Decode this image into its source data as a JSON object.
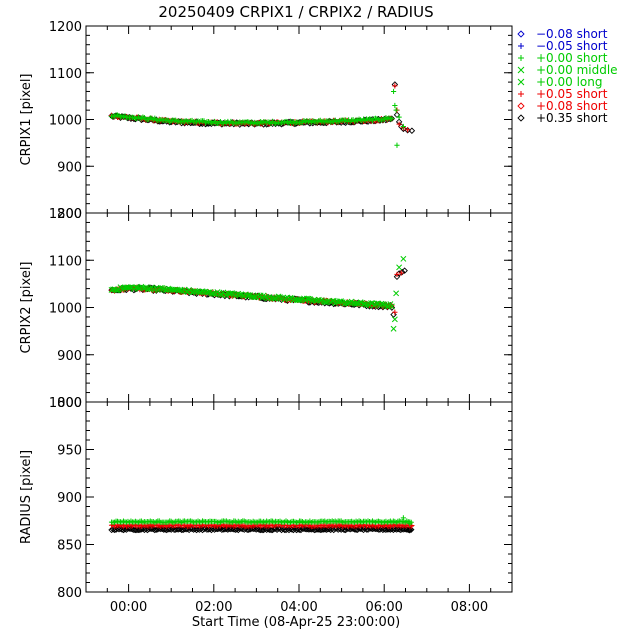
{
  "chart_data": {
    "type": "scatter",
    "title": "20250409  CRPIX1  /  CRPIX2  /  RADIUS",
    "xlabel": "Start Time (08-Apr-25 23:00:00)",
    "x_unit": "hours after 08-Apr-25 23:00:00",
    "xlim": [
      0,
      10
    ],
    "x_ticks": [
      {
        "value": 1,
        "label": "00:00"
      },
      {
        "value": 3,
        "label": "02:00"
      },
      {
        "value": 5,
        "label": "04:00"
      },
      {
        "value": 7,
        "label": "06:00"
      },
      {
        "value": 9,
        "label": "08:00"
      }
    ],
    "legend": {
      "placement": "right-outside-top",
      "entries": [
        {
          "offset": "−0.08",
          "type": "short",
          "marker": "diamond",
          "color": "#0000cc"
        },
        {
          "offset": "−0.05",
          "type": "short",
          "marker": "plus",
          "color": "#0000cc"
        },
        {
          "offset": "+0.00",
          "type": "short",
          "marker": "plus",
          "color": "#00cc00"
        },
        {
          "offset": "+0.00",
          "type": "middle",
          "marker": "cross",
          "color": "#00cc00"
        },
        {
          "offset": "+0.00",
          "type": "long",
          "marker": "cross",
          "color": "#00cc00"
        },
        {
          "offset": "+0.05",
          "type": "short",
          "marker": "plus",
          "color": "#ee0000"
        },
        {
          "offset": "+0.08",
          "type": "short",
          "marker": "diamond",
          "color": "#ee0000"
        },
        {
          "offset": "+0.35",
          "type": "short",
          "marker": "diamond",
          "color": "#000000"
        }
      ]
    },
    "panels": [
      {
        "name": "crpix1",
        "ylabel": "CRPIX1 [pixel]",
        "ylim": [
          800,
          1200
        ],
        "y_ticks": [
          800,
          900,
          1000,
          1100,
          1200
        ],
        "trend": [
          [
            0.6,
            1008
          ],
          [
            1.2,
            1003
          ],
          [
            2.0,
            996
          ],
          [
            3.0,
            993
          ],
          [
            4.0,
            992
          ],
          [
            5.0,
            994
          ],
          [
            6.0,
            996
          ],
          [
            6.8,
            999
          ],
          [
            7.2,
            1002
          ]
        ],
        "scatter": 2.5,
        "trend_start": 0.6,
        "trend_end": 7.2,
        "series": [
          {
            "color": "#000000",
            "marker": "diamond",
            "dy": -1,
            "tail": [
              [
                7.25,
                1075
              ],
              [
                7.3,
                1010
              ],
              [
                7.35,
                995
              ],
              [
                7.4,
                985
              ],
              [
                7.45,
                980
              ],
              [
                7.55,
                977
              ],
              [
                7.65,
                976
              ]
            ]
          },
          {
            "color": "#ee0000",
            "marker": "plus",
            "dy": 0,
            "tail": [
              [
                7.25,
                1072
              ],
              [
                7.3,
                1020
              ],
              [
                7.35,
                990
              ],
              [
                7.45,
                982
              ],
              [
                7.55,
                978
              ]
            ]
          },
          {
            "color": "#00cc00",
            "marker": "plus",
            "dy": 1,
            "tail": [
              [
                7.22,
                1060
              ],
              [
                7.25,
                1030
              ],
              [
                7.28,
                1020
              ],
              [
                7.3,
                945
              ],
              [
                7.35,
                1005
              ],
              [
                7.45,
                985
              ]
            ]
          }
        ]
      },
      {
        "name": "crpix2",
        "ylabel": "CRPIX2 [pixel]",
        "ylim": [
          800,
          1200
        ],
        "y_ticks": [
          800,
          900,
          1000,
          1100,
          1200
        ],
        "trend": [
          [
            0.6,
            1037
          ],
          [
            1.0,
            1041
          ],
          [
            1.5,
            1040
          ],
          [
            2.5,
            1033
          ],
          [
            4.0,
            1023
          ],
          [
            5.5,
            1013
          ],
          [
            7.2,
            1003
          ]
        ],
        "scatter": 3,
        "trend_start": 0.6,
        "trend_end": 7.2,
        "series": [
          {
            "color": "#000000",
            "marker": "diamond",
            "dy": -1,
            "tail": [
              [
                7.22,
                985
              ],
              [
                7.3,
                1065
              ],
              [
                7.35,
                1072
              ],
              [
                7.42,
                1075
              ],
              [
                7.48,
                1078
              ]
            ]
          },
          {
            "color": "#ee0000",
            "marker": "plus",
            "dy": 0,
            "tail": [
              [
                7.25,
                990
              ],
              [
                7.3,
                1070
              ],
              [
                7.4,
                1073
              ]
            ]
          },
          {
            "color": "#00cc00",
            "marker": "cross",
            "dy": 1,
            "tail": [
              [
                7.22,
                955
              ],
              [
                7.25,
                975
              ],
              [
                7.28,
                1030
              ],
              [
                7.35,
                1085
              ],
              [
                7.45,
                1103
              ]
            ]
          }
        ]
      },
      {
        "name": "radius",
        "ylabel": "RADIUS [pixel]",
        "ylim": [
          800,
          1000
        ],
        "y_ticks": [
          800,
          850,
          900,
          950,
          1000
        ],
        "trend": [
          [
            0.6,
            0
          ],
          [
            7.65,
            0
          ]
        ],
        "scatter": 0.8,
        "trend_start": 0.6,
        "trend_end": 7.65,
        "series": [
          {
            "color": "#000000",
            "marker": "diamond",
            "level": 866,
            "tail": [
              [
                7.6,
                865
              ]
            ]
          },
          {
            "color": "#ee0000",
            "marker": "plus",
            "level": 870,
            "tail": [
              [
                7.65,
                870
              ]
            ]
          },
          {
            "color": "#00cc00",
            "marker": "plus",
            "level": 874,
            "tail": [
              [
                7.45,
                878
              ],
              [
                7.6,
                872
              ]
            ]
          }
        ]
      }
    ]
  }
}
